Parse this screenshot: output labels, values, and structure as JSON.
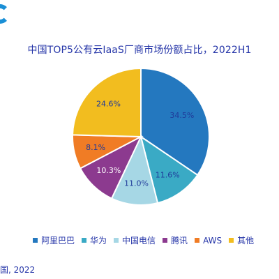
{
  "logo": {
    "icon": "logo-mark-icon",
    "color": "#1a8fd6"
  },
  "source_fragment": "国, 2022",
  "chart_data": {
    "type": "pie",
    "title": "中国TOP5公有云IaaS厂商市场份额占比，2022H1",
    "legend_position": "bottom",
    "slices": [
      {
        "label": "阿里巴巴",
        "value": 34.5,
        "display": "34.5%",
        "color": "#2478bf",
        "label_color": "#1f3a9a"
      },
      {
        "label": "华为",
        "value": 11.6,
        "display": "11.6%",
        "color": "#3aaac5",
        "label_color": "#1f3a9a"
      },
      {
        "label": "中国电信",
        "value": 11.0,
        "display": "11.0%",
        "color": "#a6d7e5",
        "label_color": "#1f3a9a"
      },
      {
        "label": "腾讯",
        "value": 10.3,
        "display": "10.3%",
        "color": "#8c3a8f",
        "label_color": "#ffffff"
      },
      {
        "label": "AWS",
        "value": 8.1,
        "display": "8.1%",
        "color": "#f07c25",
        "label_color": "#1f3a9a"
      },
      {
        "label": "其他",
        "value": 24.6,
        "display": "24.6%",
        "color": "#f2bd1f",
        "label_color": "#1f3a9a"
      }
    ]
  }
}
